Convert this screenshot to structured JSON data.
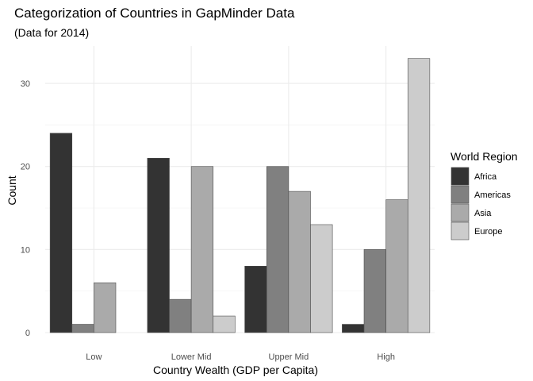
{
  "chart_data": {
    "type": "bar",
    "title": "Categorization of Countries in GapMinder Data",
    "subtitle": "(Data for 2014)",
    "xlabel": "Country Wealth (GDP per Capita)",
    "ylabel": "Count",
    "categories": [
      "Low",
      "Lower Mid",
      "Upper Mid",
      "High"
    ],
    "ylim": [
      0,
      34.5
    ],
    "yticks": [
      0,
      10,
      20,
      30
    ],
    "grid": true,
    "legend": {
      "title": "World Region",
      "position": "right"
    },
    "series": [
      {
        "name": "Africa",
        "color": "#333333",
        "values": [
          24,
          21,
          8,
          1
        ]
      },
      {
        "name": "Americas",
        "color": "#808080",
        "values": [
          1,
          4,
          20,
          10
        ]
      },
      {
        "name": "Asia",
        "color": "#aaaaaa",
        "values": [
          6,
          20,
          17,
          16
        ]
      },
      {
        "name": "Europe",
        "color": "#cccccc",
        "values": [
          null,
          2,
          13,
          33
        ]
      }
    ]
  }
}
